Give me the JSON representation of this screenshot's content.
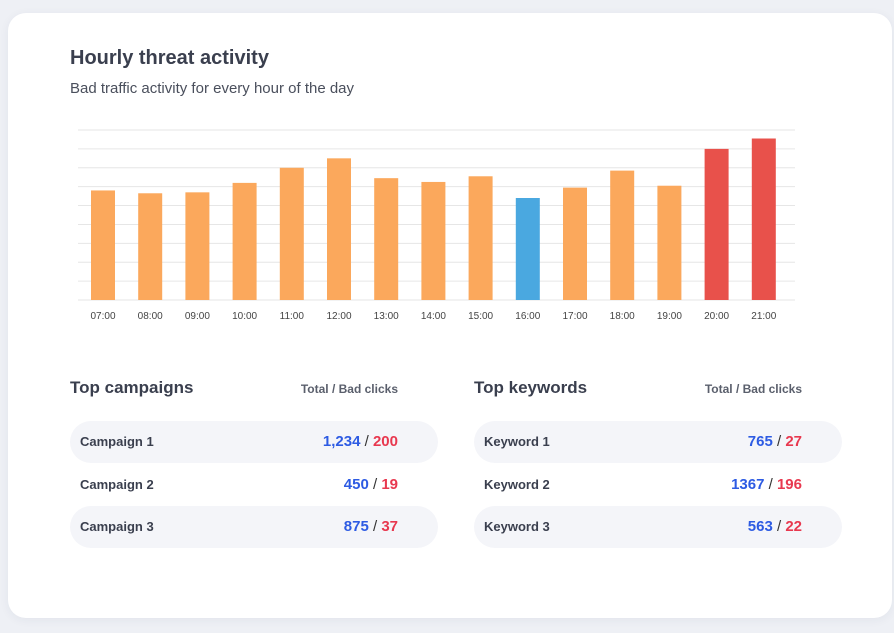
{
  "header": {
    "title": "Hourly threat activity",
    "subtitle": "Bad traffic activity for every hour of the day"
  },
  "chart_data": {
    "type": "bar",
    "categories": [
      "07:00",
      "08:00",
      "09:00",
      "10:00",
      "11:00",
      "12:00",
      "13:00",
      "14:00",
      "15:00",
      "16:00",
      "17:00",
      "18:00",
      "19:00",
      "20:00",
      "21:00"
    ],
    "values": [
      58,
      56.5,
      57,
      62,
      70,
      75,
      64.5,
      62.5,
      65.5,
      54,
      59.5,
      68.5,
      60.5,
      80,
      85.5
    ],
    "bar_colors": [
      "#fba85c",
      "#fba85c",
      "#fba85c",
      "#fba85c",
      "#fba85c",
      "#fba85c",
      "#fba85c",
      "#fba85c",
      "#fba85c",
      "#4aa8e0",
      "#fba85c",
      "#fba85c",
      "#fba85c",
      "#e8514b",
      "#e8514b"
    ],
    "ylim": [
      0,
      90
    ],
    "grid": true,
    "title": "",
    "xlabel": "",
    "ylabel": ""
  },
  "campaigns": {
    "title": "Top campaigns",
    "column": "Total / Bad clicks",
    "separator": "/",
    "rows": [
      {
        "label": "Campaign 1",
        "total": "1,234",
        "bad": "200"
      },
      {
        "label": "Campaign 2",
        "total": "450",
        "bad": "19"
      },
      {
        "label": "Campaign 3",
        "total": "875",
        "bad": "37"
      }
    ]
  },
  "keywords": {
    "title": "Top keywords",
    "column": "Total / Bad clicks",
    "separator": "/",
    "rows": [
      {
        "label": "Keyword 1",
        "total": "765",
        "bad": "27"
      },
      {
        "label": "Keyword 2",
        "total": "1367",
        "bad": "196"
      },
      {
        "label": "Keyword 3",
        "total": "563",
        "bad": "22"
      }
    ]
  }
}
